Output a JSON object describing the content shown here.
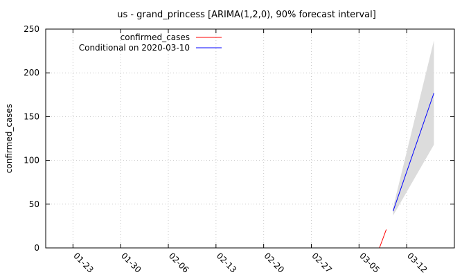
{
  "chart_data": {
    "type": "line",
    "title": "us - grand_princess [ARIMA(1,2,0), 90% forecast interval]",
    "xlabel": "",
    "ylabel": "confirmed_cases",
    "x_range": [
      "2020-01-19",
      "2020-03-19"
    ],
    "ylim": [
      0,
      250
    ],
    "x_ticks": [
      "01-23",
      "01-30",
      "02-06",
      "02-13",
      "02-20",
      "02-27",
      "03-05",
      "03-12"
    ],
    "x_tick_dates": [
      "2020-01-23",
      "2020-01-30",
      "2020-02-06",
      "2020-02-13",
      "2020-02-20",
      "2020-02-27",
      "2020-03-05",
      "2020-03-12"
    ],
    "y_ticks": [
      0,
      50,
      100,
      150,
      200,
      250
    ],
    "grid": true,
    "legend_position": "top-left",
    "series": [
      {
        "name": "confirmed_cases",
        "color": "#ff0000",
        "points": [
          {
            "x": "2020-03-08",
            "y": 0
          },
          {
            "x": "2020-03-09",
            "y": 21
          }
        ]
      },
      {
        "name": "Conditional on 2020-03-10",
        "color": "#0000ff",
        "points": [
          {
            "x": "2020-03-10",
            "y": 42
          },
          {
            "x": "2020-03-16",
            "y": 177
          }
        ]
      }
    ],
    "interval": {
      "label": "90% forecast interval",
      "color": "#dcdcdc",
      "points": [
        {
          "x": "2020-03-10",
          "low": 37,
          "high": 46
        },
        {
          "x": "2020-03-16",
          "low": 118,
          "high": 237
        }
      ]
    }
  }
}
